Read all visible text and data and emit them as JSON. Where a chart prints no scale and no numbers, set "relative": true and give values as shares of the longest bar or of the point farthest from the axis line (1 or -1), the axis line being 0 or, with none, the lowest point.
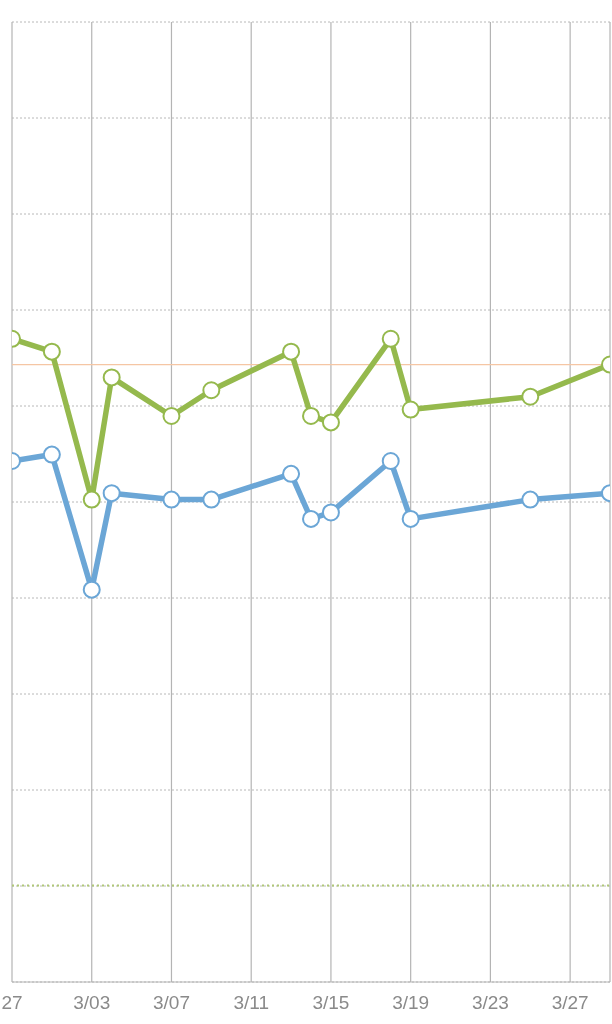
{
  "chart_data": {
    "type": "line",
    "relative": true,
    "x": [
      "--02-27",
      "--03-01",
      "--03-03",
      "--03-04",
      "--03-07",
      "--03-09",
      "--03-13",
      "--03-14",
      "--03-15",
      "--03-18",
      "--03-19",
      "--03-25",
      "--03-29"
    ],
    "xlim": [
      "--02-27",
      "--03-29"
    ],
    "xticks": [
      {
        "value": "--02-27",
        "label": "27"
      },
      {
        "value": "--03-03",
        "label": "3/03"
      },
      {
        "value": "--03-07",
        "label": "3/07"
      },
      {
        "value": "--03-11",
        "label": "3/11"
      },
      {
        "value": "--03-15",
        "label": "3/15"
      },
      {
        "value": "--03-19",
        "label": "3/19"
      },
      {
        "value": "--03-23",
        "label": "3/23"
      },
      {
        "value": "--03-27",
        "label": "3/27"
      }
    ],
    "series": [
      {
        "color": "#95b94d",
        "values": [
          1.0,
          0.98,
          0.75,
          0.94,
          0.88,
          0.92,
          0.98,
          0.88,
          0.87,
          1.0,
          0.89,
          0.91,
          0.96
        ]
      },
      {
        "color": "#6ba6d6",
        "values": [
          0.81,
          0.82,
          0.61,
          0.76,
          0.75,
          0.75,
          0.79,
          0.72,
          0.73,
          0.81,
          0.72,
          0.75,
          0.76
        ]
      }
    ],
    "ref_lines": [
      {
        "axis": "y",
        "value": 0.96,
        "color": "#f5c6a4"
      },
      {
        "axis": "y",
        "value": 0.15,
        "color": "#b0c877",
        "line_style": "dotted"
      }
    ],
    "grid": true,
    "marker": "circle",
    "line_style": "solid"
  }
}
